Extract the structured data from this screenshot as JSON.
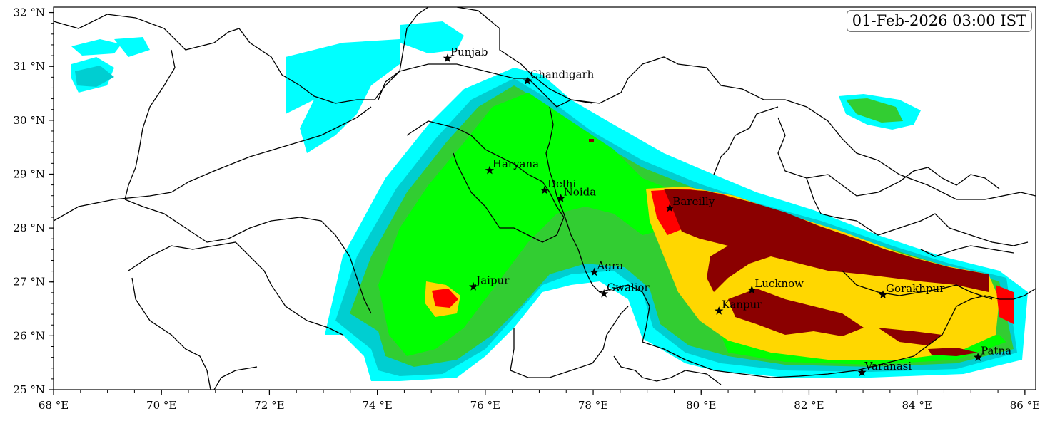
{
  "timestamp": "01-Feb-2026 03:00 IST",
  "axes": {
    "lon": {
      "min": 68,
      "max": 86.2,
      "ticks": [
        68,
        70,
        72,
        74,
        76,
        78,
        80,
        82,
        84,
        86
      ],
      "unit": "°E"
    },
    "lat": {
      "min": 25,
      "max": 32.1,
      "ticks": [
        25,
        26,
        27,
        28,
        29,
        30,
        31,
        32
      ],
      "unit": "°N"
    }
  },
  "palette": {
    "cyan": "#00ffff",
    "teal": "#00ced1",
    "bright_green": "#00ff00",
    "mid_green": "#32cd32",
    "yellow": "#ffd700",
    "red": "#ff0000",
    "dark_red": "#8b0000"
  },
  "cities": [
    {
      "name": "Punjab",
      "lon": 75.3,
      "lat": 31.15
    },
    {
      "name": "Chandigarh",
      "lon": 76.78,
      "lat": 30.73
    },
    {
      "name": "Haryana",
      "lon": 76.08,
      "lat": 29.07
    },
    {
      "name": "Delhi",
      "lon": 77.1,
      "lat": 28.7
    },
    {
      "name": "Noida",
      "lon": 77.4,
      "lat": 28.55
    },
    {
      "name": "Bareilly",
      "lon": 79.42,
      "lat": 28.37
    },
    {
      "name": "Agra",
      "lon": 78.02,
      "lat": 27.18
    },
    {
      "name": "Jaipur",
      "lon": 75.78,
      "lat": 26.91
    },
    {
      "name": "Gwalior",
      "lon": 78.2,
      "lat": 26.78
    },
    {
      "name": "Lucknow",
      "lon": 80.94,
      "lat": 26.85
    },
    {
      "name": "Kanpur",
      "lon": 80.33,
      "lat": 26.46
    },
    {
      "name": "Gorakhpur",
      "lon": 83.37,
      "lat": 26.76
    },
    {
      "name": "Patna",
      "lon": 85.13,
      "lat": 25.6
    },
    {
      "name": "Varanasi",
      "lon": 82.98,
      "lat": 25.32
    }
  ]
}
